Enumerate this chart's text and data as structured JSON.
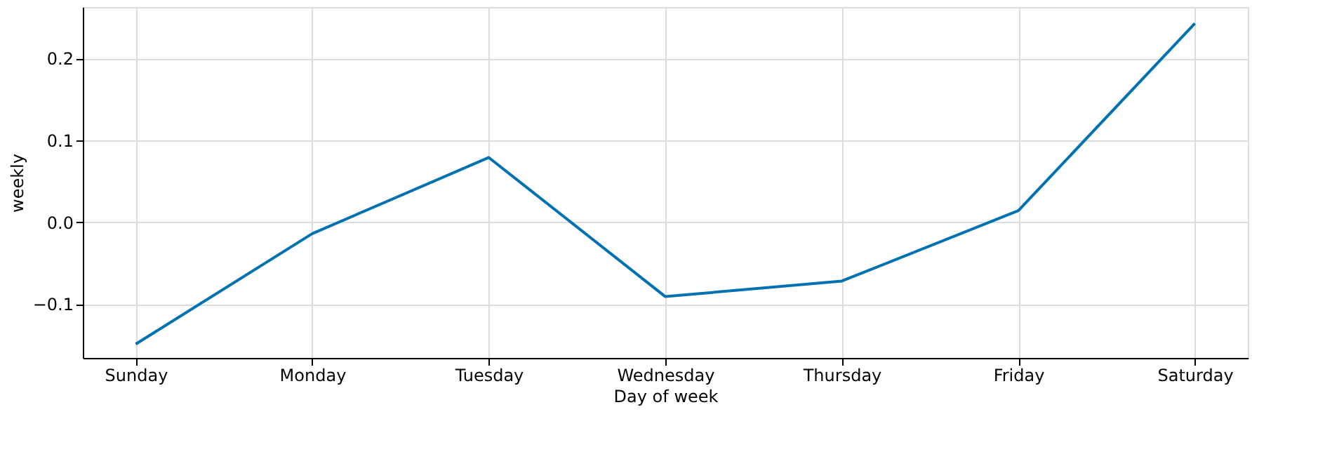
{
  "chart_data": {
    "type": "line",
    "xlabel": "Day of week",
    "ylabel": "weekly",
    "categories": [
      "Sunday",
      "Monday",
      "Tuesday",
      "Wednesday",
      "Thursday",
      "Friday",
      "Saturday"
    ],
    "series": [
      {
        "color": "#0072b2",
        "values": [
          -0.149,
          -0.014,
          0.079,
          -0.091,
          -0.072,
          0.014,
          0.243
        ]
      }
    ],
    "ylim": [
      -0.166,
      0.263
    ],
    "yticks": [
      {
        "value": -0.1,
        "label": "−0.1"
      },
      {
        "value": 0,
        "label": "0.0"
      },
      {
        "value": 0.1,
        "label": "0.1"
      },
      {
        "value": 0.2,
        "label": "0.2"
      }
    ],
    "grid": true,
    "marker": "none",
    "line_style": "solid"
  }
}
